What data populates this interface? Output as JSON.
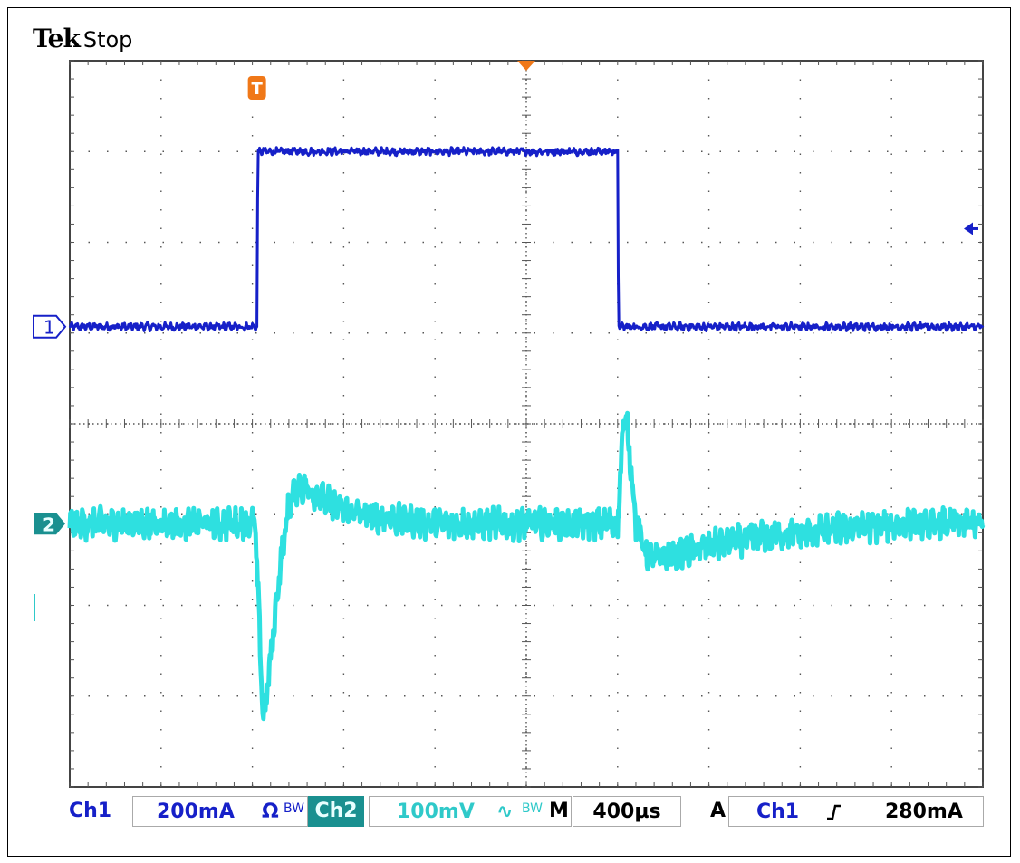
{
  "brand": {
    "logo": "Tek",
    "state": "Stop"
  },
  "colors": {
    "ch1": "#1620c8",
    "ch2": "#2ee0e0",
    "trigger": "#f07818",
    "grid": "#555555",
    "ch2_badge": "#1a9090"
  },
  "markers": {
    "trigger_label": "T",
    "ch1_label": "1",
    "ch2_label": "2"
  },
  "status": {
    "ch1_label": "Ch1",
    "ch1_scale": "200mA",
    "ch1_coupling": "Ω",
    "ch1_bw": "BW",
    "ch2_label": "Ch2",
    "ch2_scale": "100mV",
    "ch2_coupling": "∿",
    "ch2_bw": "BW",
    "time_label": "M",
    "time_scale": "400µs",
    "trigger_mode": "A",
    "trigger_source": "Ch1",
    "trigger_slope": "rising-edge-icon",
    "trigger_level": "280mA"
  },
  "chart_data": {
    "type": "line",
    "title": "",
    "grid": true,
    "x_divisions": 10,
    "y_divisions": 8,
    "x_units": "div",
    "y_units": "div",
    "xlim": [
      0,
      10
    ],
    "ylim": [
      -4,
      4
    ],
    "series": [
      {
        "name": "Ch1",
        "x": [
          0,
          2.05,
          2.06,
          3,
          5,
          6.0,
          6.01,
          8,
          10
        ],
        "y": [
          1.07,
          1.07,
          3.0,
          3.0,
          3.0,
          3.0,
          1.07,
          1.07,
          1.07
        ],
        "noise": 0.03
      },
      {
        "name": "Ch2",
        "x": [
          0,
          1.5,
          2.03,
          2.05,
          2.08,
          2.12,
          2.2,
          2.3,
          2.4,
          2.5,
          2.6,
          2.8,
          3.0,
          3.5,
          4.0,
          4.5,
          5.0,
          5.5,
          6.0,
          6.03,
          6.06,
          6.1,
          6.15,
          6.2,
          6.3,
          6.4,
          6.6,
          7.0,
          7.5,
          8.0,
          8.5,
          9.0,
          9.5,
          10.0
        ],
        "y": [
          -1.1,
          -1.1,
          -1.1,
          -1.6,
          -2.3,
          -3.3,
          -2.6,
          -1.6,
          -0.9,
          -0.68,
          -0.72,
          -0.85,
          -0.95,
          -1.05,
          -1.1,
          -1.1,
          -1.1,
          -1.1,
          -1.1,
          -0.6,
          0.0,
          0.0,
          -0.5,
          -1.1,
          -1.4,
          -1.5,
          -1.45,
          -1.35,
          -1.25,
          -1.2,
          -1.15,
          -1.12,
          -1.1,
          -1.1
        ],
        "noise": 0.12
      }
    ],
    "ch1_ground_div": 1.07,
    "ch2_ground_div": -1.1,
    "trigger_time_div": 2.05,
    "trigger_level_div": 2.15
  }
}
